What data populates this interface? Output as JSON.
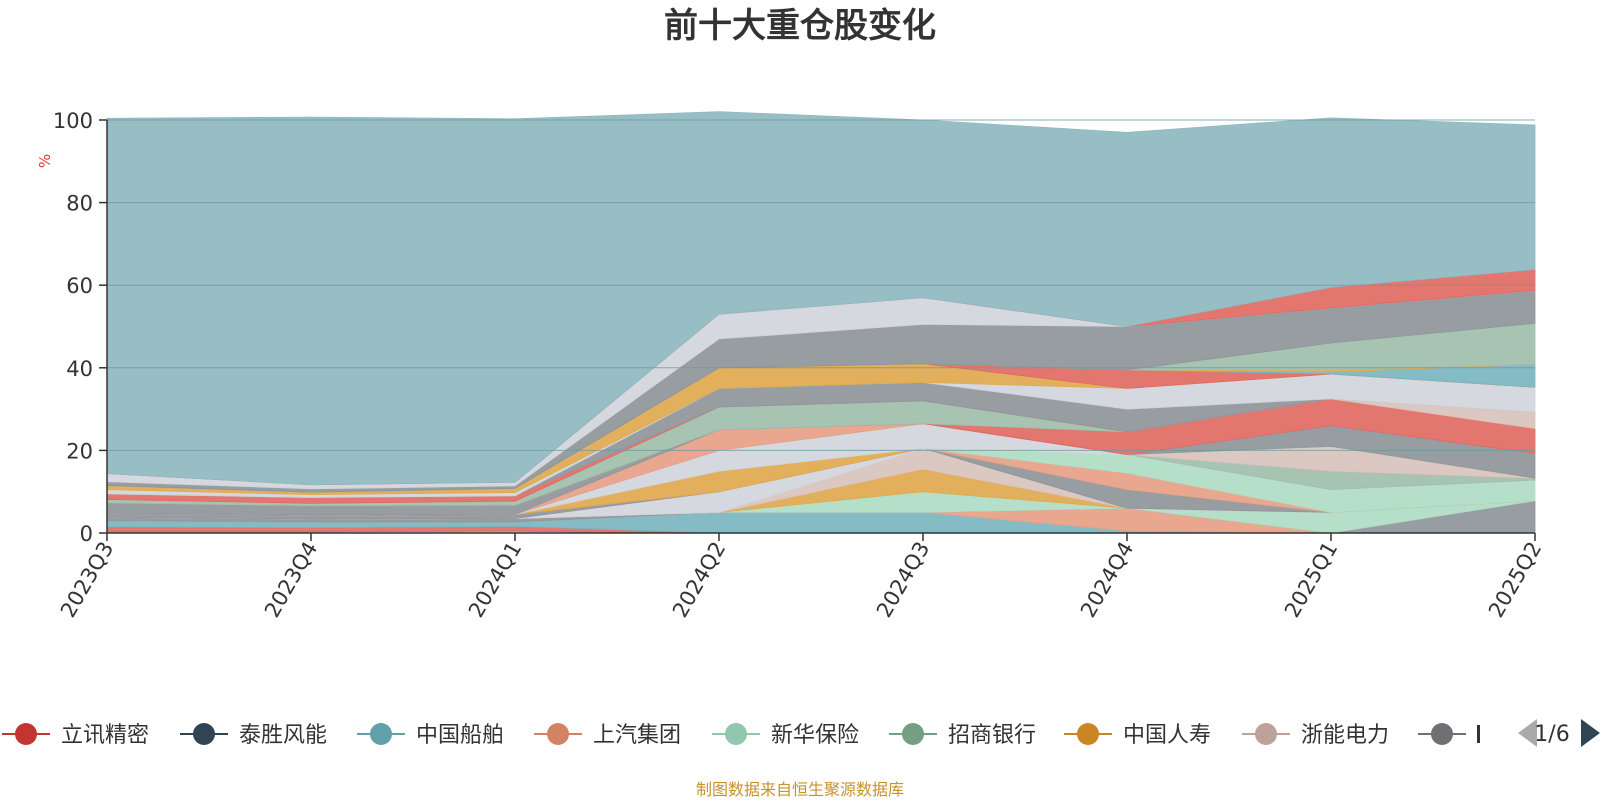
{
  "chart_data": {
    "type": "area",
    "stacked": true,
    "title": "前十大重仓股变化",
    "ylabel": "%",
    "ylim": [
      0,
      100
    ],
    "yticks": [
      "0",
      "20",
      "40",
      "60",
      "80",
      "100"
    ],
    "categories": [
      "2023Q3",
      "2023Q4",
      "2024Q1",
      "2024Q2",
      "2024Q3",
      "2024Q4",
      "2025Q1",
      "2025Q2"
    ],
    "grid": true,
    "series_bottom_to_top": [
      {
        "color": "#d1d5db",
        "values": [
          0.3,
          0.3,
          0.4,
          0,
          0,
          0,
          0,
          0
        ]
      },
      {
        "color": "#e16a63",
        "values": [
          1.2,
          1.0,
          1.2,
          0,
          0,
          0,
          0,
          0
        ]
      },
      {
        "color": "#7bb5bf",
        "values": [
          1.5,
          1.4,
          1.1,
          5.0,
          5.0,
          0.5,
          0,
          0
        ]
      },
      {
        "color": "#e8a087",
        "values": [
          0,
          0,
          0,
          0,
          0,
          5.5,
          0,
          0
        ]
      },
      {
        "color": "#8f959a",
        "values": [
          0.8,
          0.7,
          0.8,
          0,
          0,
          0,
          0,
          7.8
        ]
      },
      {
        "color": "#b0dcc6",
        "values": [
          0,
          0,
          0,
          0,
          5.0,
          0,
          5.0,
          0
        ]
      },
      {
        "color": "#e0a94f",
        "values": [
          0,
          0,
          0,
          0,
          5.5,
          0,
          0,
          0
        ]
      },
      {
        "color": "#d9c3bd",
        "values": [
          0,
          0,
          0,
          0,
          5.0,
          0,
          0,
          0
        ]
      },
      {
        "color": "#d1d5db",
        "values": [
          0,
          0,
          0,
          5.0,
          0,
          0,
          0,
          0
        ]
      },
      {
        "color": "#8f959a",
        "values": [
          1.0,
          1.0,
          1.0,
          0,
          0,
          4.5,
          0,
          0
        ]
      },
      {
        "color": "#e8a087",
        "values": [
          0,
          0,
          0,
          0,
          0,
          4.0,
          0,
          0
        ]
      },
      {
        "color": "#e0a94f",
        "values": [
          0,
          0,
          0,
          5.0,
          0,
          0,
          0,
          0
        ]
      },
      {
        "color": "#b0dcc6",
        "values": [
          0,
          0,
          0,
          0,
          0,
          4.5,
          5.5,
          5.0
        ]
      },
      {
        "color": "#d1d5db",
        "values": [
          0,
          0,
          0,
          5.0,
          6.0,
          0,
          0,
          0
        ]
      },
      {
        "color": "#9fbfab",
        "values": [
          0,
          0,
          0,
          0,
          0,
          0,
          4.5,
          0.5
        ]
      },
      {
        "color": "#e8a087",
        "values": [
          0,
          0,
          0,
          5.0,
          0,
          0,
          0,
          0
        ]
      },
      {
        "color": "#d9c3bd",
        "values": [
          0,
          0,
          0,
          0,
          0,
          0,
          6.0,
          0
        ]
      },
      {
        "color": "#8f959a",
        "values": [
          2.5,
          2.2,
          2.2,
          0,
          0,
          0,
          5.0,
          6.0
        ]
      },
      {
        "color": "#e16a63",
        "values": [
          0,
          0,
          0,
          0,
          0,
          5.5,
          6.5,
          6.0
        ]
      },
      {
        "color": "#9fbfab",
        "values": [
          0.8,
          0.6,
          1.0,
          5.5,
          5.5,
          0,
          0,
          0
        ]
      },
      {
        "color": "#e16a63",
        "values": [
          1.4,
          1.4,
          1.3,
          0,
          0,
          0,
          0,
          0
        ]
      },
      {
        "color": "#d9c3bd",
        "values": [
          0,
          0,
          0,
          0,
          0,
          0,
          0,
          4.0
        ]
      },
      {
        "color": "#8f959a",
        "values": [
          0,
          0,
          0,
          4.5,
          4.5,
          5.5,
          0,
          0
        ]
      },
      {
        "color": "#d1d5db",
        "values": [
          1.0,
          0.7,
          0.8,
          0,
          0,
          5.0,
          6.0,
          6.0
        ]
      },
      {
        "color": "#e0a94f",
        "values": [
          1.0,
          0.6,
          1.0,
          5.0,
          4.5,
          0,
          0,
          0
        ]
      },
      {
        "color": "#e16a63",
        "values": [
          0,
          0,
          0,
          0,
          0,
          4.5,
          0,
          0
        ]
      },
      {
        "color": "#7bb5bf",
        "values": [
          0,
          0,
          0,
          0,
          0,
          0,
          0.5,
          5.5
        ]
      },
      {
        "color": "#e0a94f",
        "values": [
          0,
          0,
          0,
          0,
          0,
          0,
          0.5,
          0
        ]
      },
      {
        "color": "#9fbfab",
        "values": [
          0,
          0,
          0,
          0,
          0,
          0,
          6.5,
          10.0
        ]
      },
      {
        "color": "#8f959a",
        "values": [
          0.9,
          0.8,
          0.6,
          7.0,
          9.5,
          10.5,
          8.5,
          8.0
        ]
      },
      {
        "color": "#d1d5db",
        "values": [
          2.0,
          1.0,
          0.9,
          6.0,
          6.5,
          0,
          0,
          0
        ]
      },
      {
        "color": "#e16a63",
        "values": [
          0,
          0,
          0,
          0,
          0,
          0,
          5.0,
          5.0
        ]
      },
      {
        "color": "#8fb9c0",
        "values": [
          86.0,
          89.0,
          88.0,
          49.0,
          43.0,
          47.0,
          41.0,
          35.0
        ]
      }
    ]
  },
  "legend": {
    "items": [
      {
        "label": "立讯精密",
        "color": "#c23531"
      },
      {
        "label": "泰胜风能",
        "color": "#2f4554"
      },
      {
        "label": "中国船舶",
        "color": "#61a0a8"
      },
      {
        "label": "上汽集团",
        "color": "#d48265"
      },
      {
        "label": "新华保险",
        "color": "#91c7ae"
      },
      {
        "label": "招商银行",
        "color": "#749f83"
      },
      {
        "label": "中国人寿",
        "color": "#ca8622"
      },
      {
        "label": "浙能电力",
        "color": "#bda29a"
      },
      {
        "label": "",
        "color": "#6e7074"
      }
    ],
    "page": "1/6"
  },
  "source_note": "制图数据来自恒生聚源数据库"
}
